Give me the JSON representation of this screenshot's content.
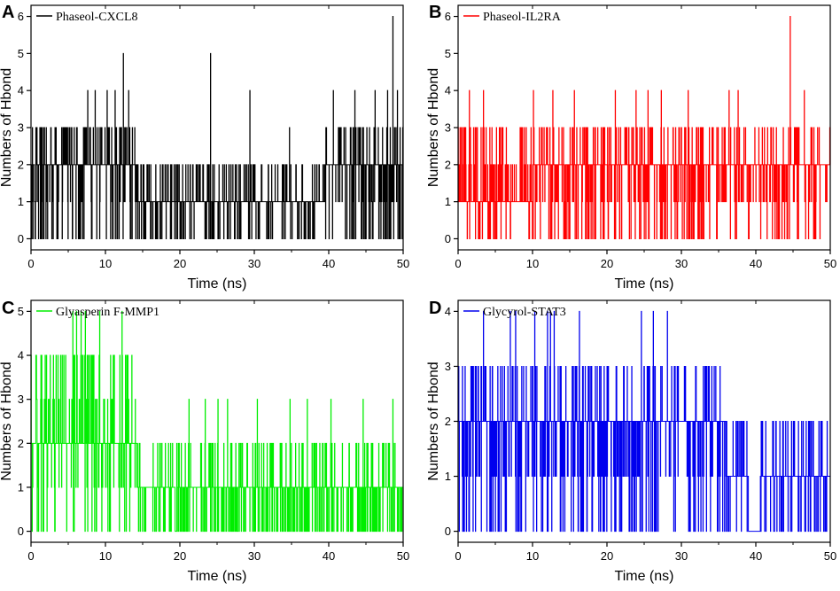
{
  "chart_data": [
    {
      "type": "line",
      "panel": "A",
      "title": "",
      "xlabel": "Time (ns)",
      "ylabel": "Numbers of Hbond",
      "xlim": [
        0,
        50
      ],
      "ylim": [
        -0.3,
        6.3
      ],
      "xticks": [
        0,
        10,
        20,
        30,
        40,
        50
      ],
      "yticks": [
        0,
        1,
        2,
        3,
        4,
        5,
        6
      ],
      "legend_position": "top-left",
      "series": [
        {
          "name": "Phaseol-CXCL8",
          "color": "#000000",
          "segments": [
            {
              "from": 0,
              "to": 14.2,
              "base": 2,
              "alt": [
                0,
                1,
                2,
                3
              ]
            },
            {
              "from": 14.2,
              "to": 39.5,
              "base": 1,
              "alt": [
                0,
                1,
                2
              ]
            },
            {
              "from": 39.5,
              "to": 50,
              "base": 2,
              "alt": [
                1,
                2,
                3,
                0
              ]
            }
          ],
          "spikes": [
            {
              "t": 7.6,
              "v": 4
            },
            {
              "t": 8.6,
              "v": 4
            },
            {
              "t": 10.2,
              "v": 4
            },
            {
              "t": 11.3,
              "v": 4
            },
            {
              "t": 12.4,
              "v": 5
            },
            {
              "t": 13.1,
              "v": 4
            },
            {
              "t": 24.1,
              "v": 5
            },
            {
              "t": 29.4,
              "v": 4
            },
            {
              "t": 34.7,
              "v": 3
            },
            {
              "t": 40.6,
              "v": 4
            },
            {
              "t": 43.5,
              "v": 4
            },
            {
              "t": 46.2,
              "v": 4
            },
            {
              "t": 47.9,
              "v": 4
            },
            {
              "t": 48.6,
              "v": 6
            },
            {
              "t": 49.2,
              "v": 4
            }
          ]
        }
      ]
    },
    {
      "type": "line",
      "panel": "B",
      "title": "",
      "xlabel": "Time (ns)",
      "ylabel": "Numbers of Hbond",
      "xlim": [
        0,
        50
      ],
      "ylim": [
        -0.3,
        6.3
      ],
      "xticks": [
        0,
        10,
        20,
        30,
        40,
        50
      ],
      "yticks": [
        0,
        1,
        2,
        3,
        4,
        5,
        6
      ],
      "legend_position": "top-left",
      "series": [
        {
          "name": "Phaseol-IL2RA",
          "color": "#ff0000",
          "segments": [
            {
              "from": 0,
              "to": 10,
              "base": 1,
              "alt": [
                0,
                1,
                2,
                3
              ]
            },
            {
              "from": 10,
              "to": 24,
              "base": 2,
              "alt": [
                0,
                1,
                2,
                3
              ]
            },
            {
              "from": 24,
              "to": 50,
              "base": 2,
              "alt": [
                1,
                2,
                3,
                0
              ]
            }
          ],
          "spikes": [
            {
              "t": 1.5,
              "v": 4
            },
            {
              "t": 3.4,
              "v": 4
            },
            {
              "t": 10.1,
              "v": 4
            },
            {
              "t": 12.7,
              "v": 4
            },
            {
              "t": 15.6,
              "v": 4
            },
            {
              "t": 21.1,
              "v": 4
            },
            {
              "t": 23.9,
              "v": 4
            },
            {
              "t": 25.5,
              "v": 4
            },
            {
              "t": 27.3,
              "v": 4
            },
            {
              "t": 30.9,
              "v": 4
            },
            {
              "t": 36.4,
              "v": 4
            },
            {
              "t": 37.6,
              "v": 4
            },
            {
              "t": 44.6,
              "v": 6
            },
            {
              "t": 46.5,
              "v": 4
            }
          ]
        }
      ]
    },
    {
      "type": "line",
      "panel": "C",
      "title": "",
      "xlabel": "Time (ns)",
      "ylabel": "Numbers of Hbond",
      "xlim": [
        0,
        50
      ],
      "ylim": [
        -0.25,
        5.25
      ],
      "xticks": [
        0,
        10,
        20,
        30,
        40,
        50
      ],
      "yticks": [
        0,
        1,
        2,
        3,
        4,
        5
      ],
      "legend_position": "top-left",
      "series": [
        {
          "name": "Glyasperin F-MMP1",
          "color": "#00ee00",
          "segments": [
            {
              "from": 0,
              "to": 14.2,
              "base": 2,
              "alt": [
                0,
                1,
                2,
                3,
                4
              ]
            },
            {
              "from": 14.2,
              "to": 50,
              "base": 1,
              "alt": [
                0,
                1,
                0,
                2
              ]
            }
          ],
          "spikes": [
            {
              "t": 5.6,
              "v": 5
            },
            {
              "t": 6.1,
              "v": 5
            },
            {
              "t": 6.7,
              "v": 5
            },
            {
              "t": 7.3,
              "v": 5
            },
            {
              "t": 9.2,
              "v": 5
            },
            {
              "t": 12.2,
              "v": 5
            },
            {
              "t": 21.2,
              "v": 3
            },
            {
              "t": 23.4,
              "v": 3
            },
            {
              "t": 25.1,
              "v": 3
            },
            {
              "t": 26.4,
              "v": 3
            },
            {
              "t": 30.4,
              "v": 3
            },
            {
              "t": 34.8,
              "v": 3
            },
            {
              "t": 37.1,
              "v": 3
            },
            {
              "t": 40.3,
              "v": 3
            },
            {
              "t": 44.6,
              "v": 3
            },
            {
              "t": 48.6,
              "v": 3
            }
          ]
        }
      ]
    },
    {
      "type": "line",
      "panel": "D",
      "title": "",
      "xlabel": "Time (ns)",
      "ylabel": "Numbers of Hbond",
      "xlim": [
        0,
        50
      ],
      "ylim": [
        -0.2,
        4.2
      ],
      "xticks": [
        0,
        10,
        20,
        30,
        40,
        50
      ],
      "yticks": [
        0,
        1,
        2,
        3,
        4
      ],
      "legend_position": "top-left",
      "series": [
        {
          "name": "Glycyrol-STAT3",
          "color": "#0000ee",
          "segments": [
            {
              "from": 0,
              "to": 36,
              "base": 2,
              "alt": [
                1,
                2,
                0,
                3
              ]
            },
            {
              "from": 36,
              "to": 39,
              "base": 1,
              "alt": [
                0,
                1,
                2
              ]
            },
            {
              "from": 39,
              "to": 40.6,
              "base": 0,
              "alt": [
                0
              ]
            },
            {
              "from": 40.6,
              "to": 50,
              "base": 1,
              "alt": [
                0,
                1,
                2
              ]
            }
          ],
          "spikes": [
            {
              "t": 3.4,
              "v": 4
            },
            {
              "t": 7.0,
              "v": 4
            },
            {
              "t": 7.7,
              "v": 4
            },
            {
              "t": 10.3,
              "v": 4
            },
            {
              "t": 12.0,
              "v": 4
            },
            {
              "t": 12.4,
              "v": 4
            },
            {
              "t": 12.9,
              "v": 4
            },
            {
              "t": 16.3,
              "v": 4
            },
            {
              "t": 24.6,
              "v": 4
            },
            {
              "t": 26.2,
              "v": 4
            },
            {
              "t": 28.1,
              "v": 4
            }
          ]
        }
      ]
    }
  ]
}
